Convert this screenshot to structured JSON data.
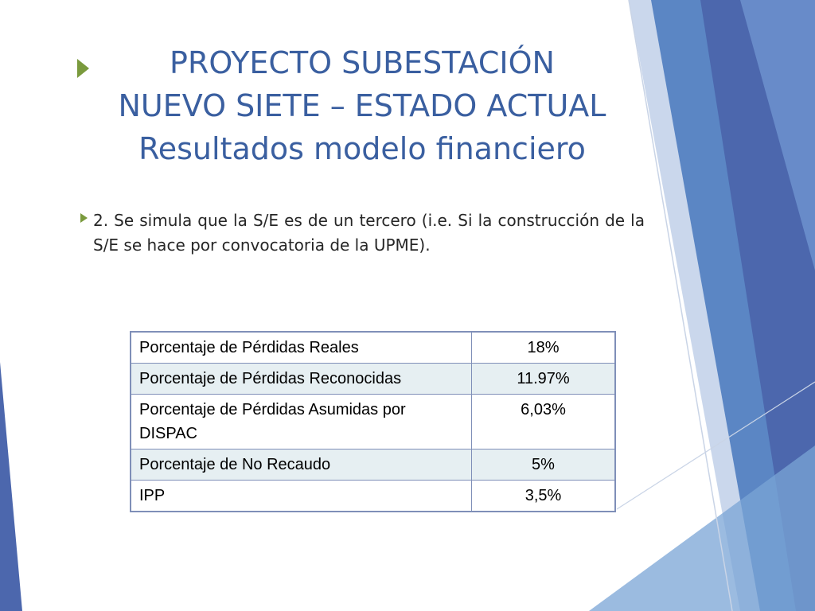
{
  "slide": {
    "title_lines": [
      "PROYECTO SUBESTACIÓN",
      "NUEVO SIETE – ESTADO ACTUAL",
      "Resultados modelo financiero"
    ],
    "bullet_text": "2.  Se simula que la S/E es de un tercero (i.e. Si la construcción de la S/E se hace por  convocatoria  de la UPME).",
    "table": {
      "rows": [
        {
          "label": "Porcentaje de Pérdidas Reales",
          "value": "18%"
        },
        {
          "label": "Porcentaje de Pérdidas Reconocidas",
          "value": "11.97%"
        },
        {
          "label": "Porcentaje de Pérdidas Asumidas por DISPAC",
          "value": "6,03%"
        },
        {
          "label": "Porcentaje de No Recaudo",
          "value": "5%"
        },
        {
          "label": "IPP",
          "value": "3,5%"
        }
      ]
    }
  },
  "colors": {
    "title": "#3a5fa0",
    "table_border": "#7f8fb8",
    "row_alt": "#e6eff2",
    "deco_dark": "#4c67ad",
    "deco_mid": "#5b86c4",
    "deco_light": "#9fb6dc"
  }
}
